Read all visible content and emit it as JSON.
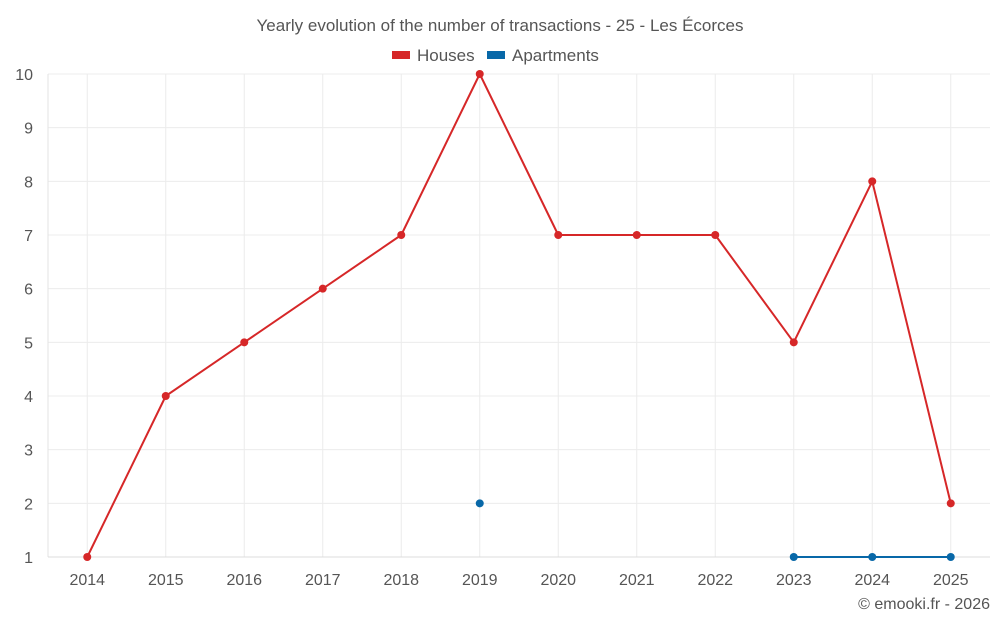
{
  "chart_data": {
    "type": "line",
    "title": "Yearly evolution of the number of transactions - 25 - Les Écorces",
    "categories": [
      "2014",
      "2015",
      "2016",
      "2017",
      "2018",
      "2019",
      "2020",
      "2021",
      "2022",
      "2023",
      "2024",
      "2025"
    ],
    "ylim": [
      1,
      10
    ],
    "yticks": [
      "1",
      "2",
      "3",
      "4",
      "5",
      "6",
      "7",
      "8",
      "9",
      "10"
    ],
    "grid": true,
    "legend_position": "top-center",
    "series": [
      {
        "name": "Houses",
        "color": "#d62728",
        "values": [
          1,
          4,
          5,
          6,
          7,
          10,
          7,
          7,
          7,
          5,
          8,
          2
        ]
      },
      {
        "name": "Apartments",
        "color": "#0868a8",
        "values": [
          null,
          null,
          null,
          null,
          null,
          2,
          null,
          null,
          null,
          1,
          1,
          1
        ]
      }
    ],
    "xlabel": "",
    "ylabel": ""
  },
  "credit": "© emooki.fr - 2026"
}
